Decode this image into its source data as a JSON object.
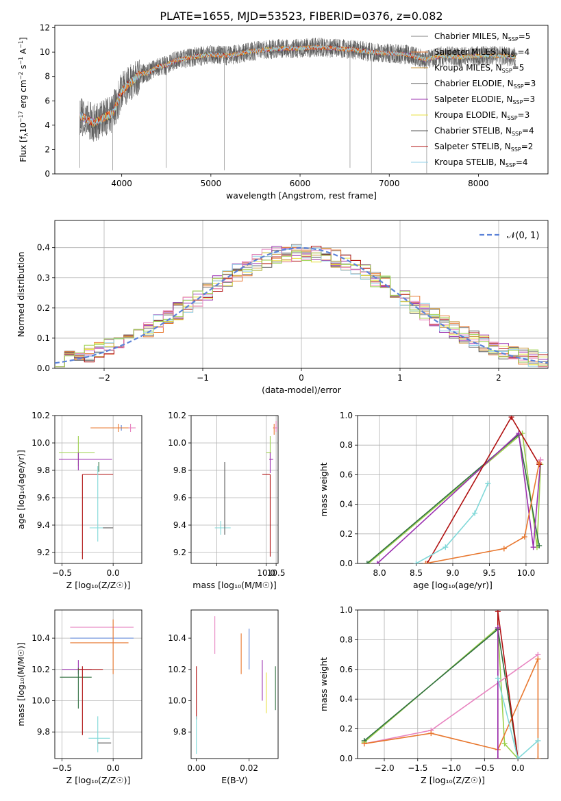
{
  "figure": {
    "title": "PLATE=1655, MJD=53523, FIBERID=0376, z=0.082"
  },
  "colors": {
    "grey": "#808080",
    "orange": "#e8772e",
    "goldbrown": "#c8943a",
    "darkgrey": "#555555",
    "purple": "#9b30b0",
    "yellowgreen": "#c8e050",
    "darkgreen": "#2f6f3f",
    "darkred": "#b01010",
    "lightblue": "#90d0e8",
    "cyan": "#80d8d8",
    "pink": "#e884c0",
    "blue": "#5b82d8",
    "gold": "#e8e040",
    "green": "#9bd04a",
    "navy": "#405080"
  },
  "chart_data": [
    {
      "id": "spectrum",
      "type": "line",
      "xlabel": "wavelength [Angstrom, rest frame]",
      "ylabel_parts": [
        "Flux [f",
        "λ",
        "10",
        "−17",
        " erg cm",
        "−2",
        " s",
        "−1",
        " A",
        "−1",
        "]"
      ],
      "xlim": [
        3250,
        8780
      ],
      "ylim": [
        0,
        12.2
      ],
      "xticks": [
        4000,
        5000,
        6000,
        7000,
        8000
      ],
      "yticks": [
        0,
        2,
        4,
        6,
        8,
        10,
        12
      ],
      "grid": false,
      "legend": "right",
      "series": [
        {
          "name": "Chabrier MILES, N",
          "sub": "SSP",
          "suffix": "=5",
          "color": "grey"
        },
        {
          "name": "Salpeter MILES, N",
          "sub": "SSP",
          "suffix": "=4",
          "color": "orange"
        },
        {
          "name": "Kroupa MILES, N",
          "sub": "SSP",
          "suffix": "=5",
          "color": "goldbrown"
        },
        {
          "name": "Chabrier ELODIE, N",
          "sub": "SSP",
          "suffix": "=3",
          "color": "darkgrey"
        },
        {
          "name": "Salpeter ELODIE, N",
          "sub": "SSP",
          "suffix": "=3",
          "color": "purple"
        },
        {
          "name": "Kroupa ELODIE, N",
          "sub": "SSP",
          "suffix": "=3",
          "color": "gold"
        },
        {
          "name": "Chabrier STELIB, N",
          "sub": "SSP",
          "suffix": "=4",
          "color": "darkgrey"
        },
        {
          "name": "Salpeter STELIB, N",
          "sub": "SSP",
          "suffix": "=2",
          "color": "darkred"
        },
        {
          "name": "Kroupa STELIB, N",
          "sub": "SSP",
          "suffix": "=4",
          "color": "lightblue"
        }
      ],
      "continuum": {
        "x": [
          3530,
          3600,
          3700,
          3800,
          3900,
          4000,
          4100,
          4200,
          4300,
          4400,
          4500,
          4600,
          4800,
          5000,
          5200,
          5400,
          5600,
          5800,
          6000,
          6200,
          6400,
          6600,
          6800,
          7000,
          7200,
          7400
        ],
        "y": [
          4.8,
          4.5,
          4.2,
          4.6,
          5.0,
          6.8,
          7.5,
          8.2,
          8.3,
          8.8,
          8.9,
          9.3,
          9.6,
          9.8,
          9.7,
          10.0,
          10.2,
          10.3,
          10.3,
          10.4,
          10.3,
          10.2,
          10.0,
          9.9,
          9.8,
          9.4
        ]
      },
      "ext_x": [
        7400,
        7600,
        7800,
        8000,
        8200,
        8400
      ],
      "ext_y": [
        9.8,
        9.7,
        9.6,
        9.7,
        9.7,
        9.6
      ]
    },
    {
      "id": "residuals",
      "type": "step",
      "xlabel": "(data-model)/error",
      "ylabel": "Normed distribution",
      "xlim": [
        -2.5,
        2.5
      ],
      "ylim": [
        0,
        0.49
      ],
      "xticks": [
        -2,
        -1,
        0,
        1,
        2
      ],
      "yticks": [
        0,
        0.1,
        0.2,
        0.3,
        0.4
      ],
      "grid": true,
      "legend": "top-right",
      "bin_width": 0.1,
      "gaussian_label": "𝒩(0, 1)",
      "series_colors": [
        "grey",
        "orange",
        "goldbrown",
        "darkgrey",
        "purple",
        "gold",
        "darkred",
        "lightblue",
        "pink",
        "green"
      ]
    },
    {
      "id": "age_vs_z",
      "type": "errorbar",
      "xlabel": "Z [log₁₀(Z/Z☉)]",
      "ylabel": "age  [log₁₀(age/yr)]",
      "xlim": [
        -0.57,
        0.28
      ],
      "ylim": [
        9.12,
        10.2
      ],
      "xticks": [
        -0.5,
        0.0
      ],
      "yticks": [
        9.2,
        9.4,
        9.6,
        9.8,
        10.0,
        10.2
      ],
      "grid": true,
      "points": [
        {
          "x": 0.08,
          "y": 10.11,
          "xerr": [
            0.3,
            0.1
          ],
          "yerr": [
            0.02,
            0.02
          ],
          "color": "blue"
        },
        {
          "x": 0.05,
          "y": 10.11,
          "xerr": [
            0.27,
            0.12
          ],
          "yerr": [
            0.03,
            0.03
          ],
          "color": "orange"
        },
        {
          "x": 0.17,
          "y": 10.11,
          "xerr": [
            0.02,
            0.05
          ],
          "yerr": [
            0.03,
            0.03
          ],
          "color": "pink"
        },
        {
          "x": -0.34,
          "y": 9.93,
          "xerr": [
            0.19,
            0.16
          ],
          "yerr": [
            0.1,
            0.12
          ],
          "color": "green"
        },
        {
          "x": -0.34,
          "y": 9.88,
          "xerr": [
            0.19,
            0.33
          ],
          "yerr": [
            0.08,
            0.05
          ],
          "color": "purple"
        },
        {
          "x": -0.3,
          "y": 9.77,
          "xerr": [
            0.0,
            0.3
          ],
          "yerr": [
            0.62,
            0.0
          ],
          "color": "darkred"
        },
        {
          "x": -0.14,
          "y": 9.79,
          "xerr": [
            0.0,
            0.0
          ],
          "yerr": [
            0.0,
            0.07
          ],
          "color": "darkgreen"
        },
        {
          "x": -0.15,
          "y": 9.38,
          "xerr": [
            0.08,
            0.1
          ],
          "yerr": [
            0.1,
            0.45
          ],
          "color": "cyan"
        },
        {
          "x": -0.1,
          "y": 9.38,
          "xerr": [
            0.0,
            0.1
          ],
          "yerr": [
            0.0,
            0.0
          ],
          "color": "darkgrey"
        }
      ]
    },
    {
      "id": "age_vs_mass",
      "type": "errorbar",
      "xlabel": "mass [log₁₀(M/M☉)]",
      "ylabel": "",
      "xlim": [
        6.2,
        10.6
      ],
      "ylim": [
        9.12,
        10.2
      ],
      "xticks": [
        7.5,
        10.0,
        10.5
      ],
      "xtick_labels": [
        "",
        "10.0",
        "10.5"
      ],
      "yticks": [
        9.2,
        9.4,
        9.6,
        9.8,
        10.0,
        10.2
      ],
      "grid": true,
      "points": [
        {
          "x": 10.4,
          "y": 10.11,
          "xerr": [
            0.05,
            0.05
          ],
          "yerr": [
            0.05,
            0.03
          ],
          "color": "orange"
        },
        {
          "x": 10.5,
          "y": 10.11,
          "xerr": [
            0.1,
            0.1
          ],
          "yerr": [
            0.03,
            0.05
          ],
          "color": "pink"
        },
        {
          "x": 10.2,
          "y": 9.93,
          "xerr": [
            0.2,
            0.05
          ],
          "yerr": [
            0.05,
            0.12
          ],
          "color": "green"
        },
        {
          "x": 10.2,
          "y": 9.88,
          "xerr": [
            0.05,
            0.15
          ],
          "yerr": [
            0.1,
            0.05
          ],
          "color": "purple"
        },
        {
          "x": 10.2,
          "y": 9.77,
          "xerr": [
            0.4,
            0.0
          ],
          "yerr": [
            0.6,
            0.0
          ],
          "color": "darkred"
        },
        {
          "x": 7.7,
          "y": 9.38,
          "xerr": [
            0.3,
            0.5
          ],
          "yerr": [
            0.05,
            0.05
          ],
          "color": "cyan"
        },
        {
          "x": 7.9,
          "y": 9.38,
          "xerr": [
            0.0,
            0.0
          ],
          "yerr": [
            0.05,
            0.48
          ],
          "color": "darkgrey"
        }
      ]
    },
    {
      "id": "weight_vs_age",
      "type": "line",
      "xlabel": "age  [log₁₀(age/yr)]",
      "ylabel": "mass weight",
      "xlim": [
        7.7,
        10.3
      ],
      "ylim": [
        0,
        1
      ],
      "xticks": [
        8.0,
        8.5,
        9.0,
        9.5,
        10.0
      ],
      "yticks": [
        0,
        0.2,
        0.4,
        0.6,
        0.8,
        1.0
      ],
      "grid": true,
      "series": [
        {
          "color": "green",
          "x": [
            7.85,
            9.95,
            10.15,
            10.2
          ],
          "y": [
            0.0,
            0.88,
            0.11,
            0.67
          ]
        },
        {
          "color": "darkgreen",
          "x": [
            7.83,
            9.9,
            10.18
          ],
          "y": [
            0.0,
            0.87,
            0.12
          ]
        },
        {
          "color": "purple",
          "x": [
            7.97,
            9.9,
            10.1,
            10.2
          ],
          "y": [
            0.0,
            0.88,
            0.11,
            0.7
          ]
        },
        {
          "color": "darkred",
          "x": [
            8.65,
            9.8,
            10.18
          ],
          "y": [
            0.0,
            0.99,
            0.67
          ]
        },
        {
          "color": "cyan",
          "x": [
            8.5,
            8.9,
            9.3,
            9.48
          ],
          "y": [
            0.0,
            0.11,
            0.34,
            0.54
          ]
        },
        {
          "color": "orange",
          "x": [
            8.63,
            9.7,
            9.98,
            10.18
          ],
          "y": [
            0.0,
            0.1,
            0.18,
            0.68
          ]
        },
        {
          "color": "pink",
          "x": [
            10.2
          ],
          "y": [
            0.7
          ]
        }
      ]
    },
    {
      "id": "mass_vs_z",
      "type": "errorbar",
      "xlabel": "Z [log₁₀(Z/Z☉)]",
      "ylabel": "mass [log₁₀(M/M☉)]",
      "xlim": [
        -0.57,
        0.28
      ],
      "ylim": [
        9.63,
        10.58
      ],
      "xticks": [
        -0.5,
        0.0
      ],
      "yticks": [
        9.8,
        10.0,
        10.2,
        10.4
      ],
      "grid": true,
      "points": [
        {
          "x": 0.0,
          "y": 10.47,
          "xerr": [
            0.42,
            0.2
          ],
          "yerr": [
            0.0,
            0.0
          ],
          "color": "pink"
        },
        {
          "x": 0.0,
          "y": 10.4,
          "xerr": [
            0.42,
            0.2
          ],
          "yerr": [
            0.0,
            0.0
          ],
          "color": "blue"
        },
        {
          "x": 0.0,
          "y": 10.37,
          "xerr": [
            0.42,
            0.15
          ],
          "yerr": [
            0.2,
            0.15
          ],
          "color": "orange"
        },
        {
          "x": -0.34,
          "y": 10.2,
          "xerr": [
            0.16,
            0.13
          ],
          "yerr": [
            0.03,
            0.06
          ],
          "color": "purple"
        },
        {
          "x": -0.34,
          "y": 10.15,
          "xerr": [
            0.18,
            0.13
          ],
          "yerr": [
            0.2,
            0.06
          ],
          "color": "darkgreen"
        },
        {
          "x": -0.3,
          "y": 10.2,
          "xerr": [
            0.04,
            0.2
          ],
          "yerr": [
            0.42,
            0.02
          ],
          "color": "darkred"
        },
        {
          "x": -0.15,
          "y": 9.76,
          "xerr": [
            0.09,
            0.12
          ],
          "yerr": [
            0.09,
            0.14
          ],
          "color": "cyan"
        },
        {
          "x": -0.15,
          "y": 9.73,
          "xerr": [
            0.0,
            0.13
          ],
          "yerr": [
            0.0,
            0.0
          ],
          "color": "darkgrey"
        }
      ]
    },
    {
      "id": "mass_vs_ebv",
      "type": "errorbar",
      "xlabel": "E(B-V)",
      "ylabel": "",
      "xlim": [
        -0.002,
        0.031
      ],
      "ylim": [
        9.63,
        10.58
      ],
      "xticks": [
        0.0,
        0.02
      ],
      "yticks": [
        9.8,
        10.0,
        10.2,
        10.4
      ],
      "grid": false,
      "points": [
        {
          "x": 0.007,
          "y": 10.42,
          "xerr": [
            0,
            0
          ],
          "yerr": [
            0.12,
            0.12
          ],
          "color": "pink"
        },
        {
          "x": 0.017,
          "y": 10.3,
          "xerr": [
            0,
            0
          ],
          "yerr": [
            0.13,
            0.13
          ],
          "color": "orange"
        },
        {
          "x": 0.02,
          "y": 10.32,
          "xerr": [
            0,
            0
          ],
          "yerr": [
            0.12,
            0.14
          ],
          "color": "blue"
        },
        {
          "x": 0.025,
          "y": 10.13,
          "xerr": [
            0,
            0
          ],
          "yerr": [
            0.13,
            0.13
          ],
          "color": "purple"
        },
        {
          "x": 0.0265,
          "y": 10.05,
          "xerr": [
            0,
            0
          ],
          "yerr": [
            0.13,
            0.13
          ],
          "color": "gold"
        },
        {
          "x": 0.03,
          "y": 10.08,
          "xerr": [
            0,
            0
          ],
          "yerr": [
            0.14,
            0.14
          ],
          "color": "darkgreen"
        },
        {
          "x": 0.0,
          "y": 10.05,
          "xerr": [
            0,
            0
          ],
          "yerr": [
            0.17,
            0.17
          ],
          "color": "darkred"
        },
        {
          "x": 0.0,
          "y": 9.78,
          "xerr": [
            0,
            0
          ],
          "yerr": [
            0.12,
            0.12
          ],
          "color": "cyan"
        }
      ]
    },
    {
      "id": "weight_vs_z",
      "type": "line",
      "xlabel": "Z [log₁₀(Z/Z☉)]",
      "ylabel": "mass weight",
      "xlim": [
        -2.4,
        0.45
      ],
      "ylim": [
        0,
        1
      ],
      "xticks": [
        -2.0,
        -1.5,
        -1.0,
        -0.5,
        0.0
      ],
      "xtick_labels": [
        "−2.0",
        "−1.5",
        "−1.0",
        "−0.5",
        "0.0"
      ],
      "yticks": [
        0,
        0.2,
        0.4,
        0.6,
        0.8,
        1.0
      ],
      "grid": true,
      "series": [
        {
          "color": "green",
          "x": [
            -2.3,
            -0.3,
            -0.2,
            0.0
          ],
          "y": [
            0.11,
            0.88,
            0.1,
            0.0
          ]
        },
        {
          "color": "darkgreen",
          "x": [
            -2.3,
            -0.3,
            0.0
          ],
          "y": [
            0.12,
            0.87,
            0.0
          ]
        },
        {
          "color": "pink",
          "x": [
            -2.3,
            -1.3,
            0.3
          ],
          "y": [
            0.1,
            0.19,
            0.7
          ]
        },
        {
          "color": "orange",
          "x": [
            -2.3,
            -1.3,
            -0.3,
            0.3,
            0.3
          ],
          "y": [
            0.1,
            0.17,
            0.06,
            0.67,
            0.0
          ]
        },
        {
          "color": "darkred",
          "x": [
            -0.3,
            -0.3,
            0.0
          ],
          "y": [
            0.0,
            0.99,
            0.0
          ]
        },
        {
          "color": "purple",
          "x": [
            -0.3,
            -0.3
          ],
          "y": [
            0.0,
            0.88
          ]
        },
        {
          "color": "cyan",
          "x": [
            -0.3,
            0.0,
            0.3
          ],
          "y": [
            0.54,
            0.0,
            0.12
          ]
        }
      ]
    }
  ]
}
